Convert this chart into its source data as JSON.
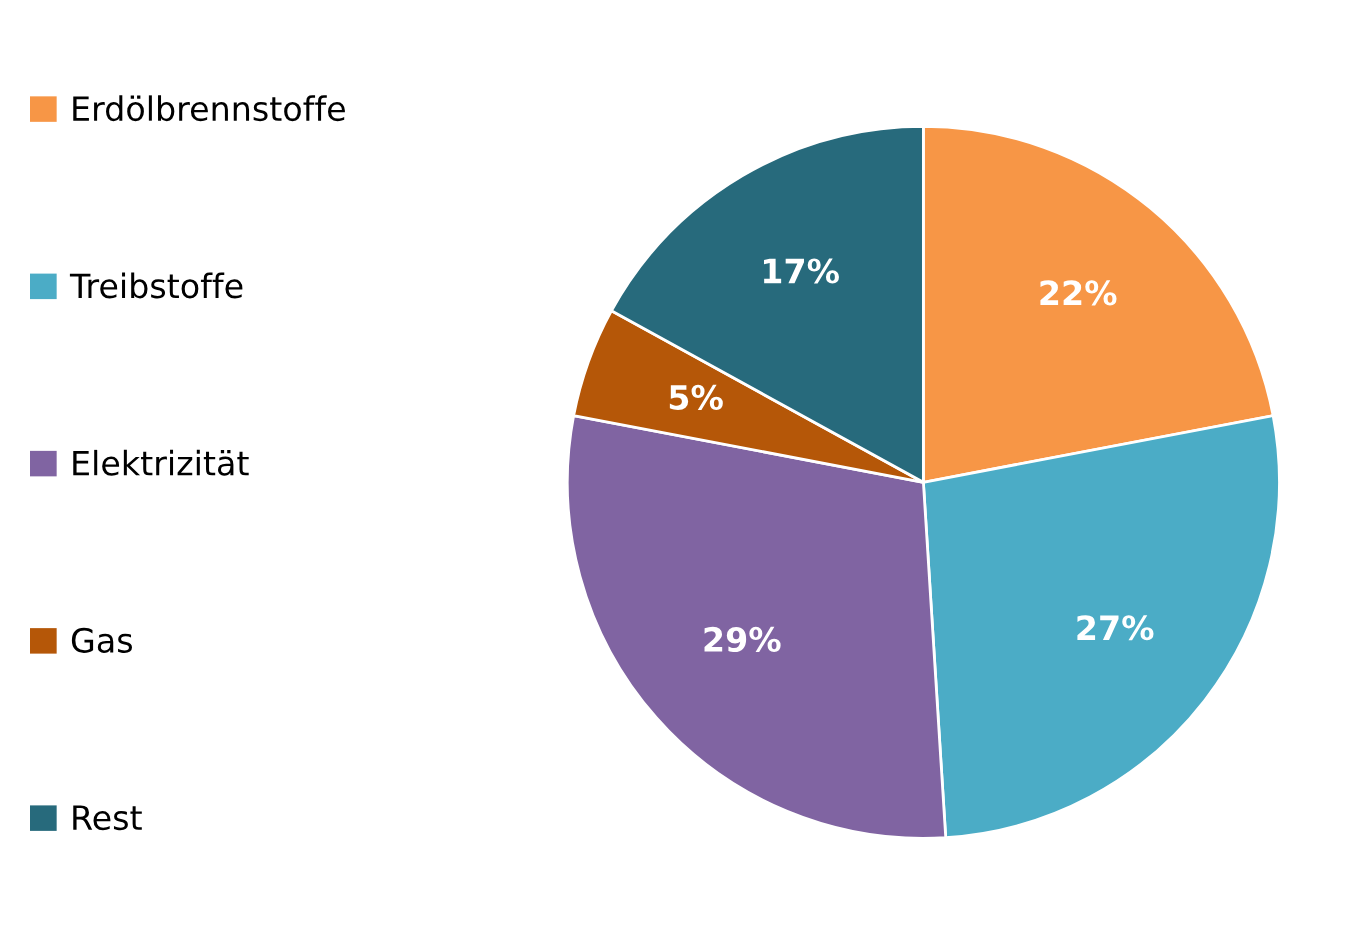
{
  "chart_data": {
    "type": "pie",
    "categories": [
      "Erdölbrennstoffe",
      "Treibstoffe",
      "Elektrizität",
      "Gas",
      "Rest"
    ],
    "values": [
      22,
      27,
      29,
      5,
      17
    ],
    "colors": [
      "#f79646",
      "#4bacc6",
      "#8064a2",
      "#b55708",
      "#276a7c"
    ],
    "value_labels": [
      "22%",
      "27%",
      "29%",
      "5%",
      "17%"
    ],
    "legend": "left"
  }
}
